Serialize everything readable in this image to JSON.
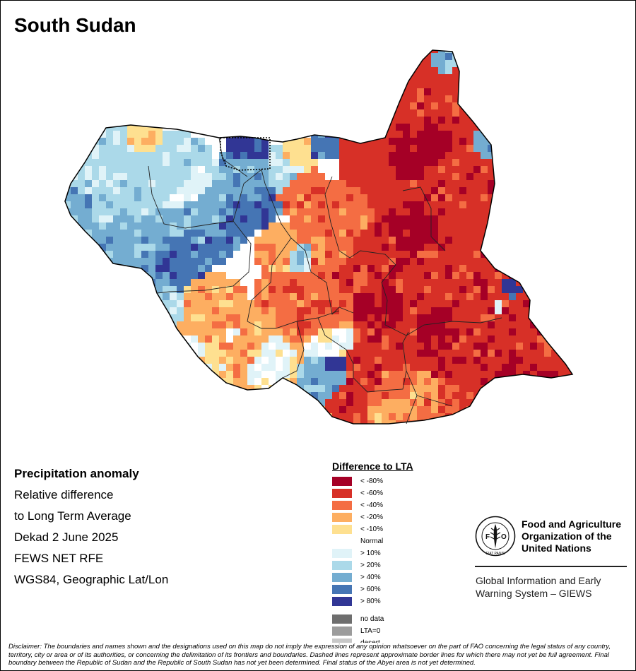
{
  "map": {
    "title": "South Sudan"
  },
  "info": {
    "heading": "Precipitation anomaly",
    "lines": [
      "Relative difference",
      "to Long Term Average",
      "Dekad 2 June 2025",
      "FEWS NET RFE",
      "WGS84, Geographic Lat/Lon"
    ]
  },
  "legend": {
    "title": "Difference to LTA",
    "classes": [
      {
        "label": "< -80%",
        "color": "#a50026"
      },
      {
        "label": "< -60%",
        "color": "#d73027"
      },
      {
        "label": "< -40%",
        "color": "#f46d43"
      },
      {
        "label": "< -20%",
        "color": "#fdae61"
      },
      {
        "label": "< -10%",
        "color": "#fee090"
      },
      {
        "label": "Normal",
        "color": "#ffffff"
      },
      {
        "label": "> 10%",
        "color": "#e0f3f8"
      },
      {
        "label": "> 20%",
        "color": "#abd9e9"
      },
      {
        "label": "> 40%",
        "color": "#74add1"
      },
      {
        "label": "> 60%",
        "color": "#4575b4"
      },
      {
        "label": "> 80%",
        "color": "#313695"
      }
    ],
    "special": [
      {
        "label": "no data",
        "color": "#6e6e6e"
      },
      {
        "label": "LTA=0",
        "color": "#9c9c9c"
      },
      {
        "label": "desert",
        "color": "#c8c8c8"
      }
    ]
  },
  "organization": {
    "name_lines": [
      "Food and Agriculture",
      "Organization of the",
      "United Nations"
    ],
    "logo_text": "FAO",
    "logo_ring_text": "FIAT PANIS",
    "system_lines": [
      "Global Information and Early",
      "Warning System – GIEWS"
    ]
  },
  "disclaimer": "Disclaimer: The boundaries and names shown and the designations used on this map do not imply the expression of any opinion whatsoever on the part of FAO concerning the legal status of any country, territory, city or area or of its authorities, or concerning the delimitation of its frontiers and boundaries. Dashed lines represent approximate border lines for which there may not yet be full agreement. Final boundary between the Republic of Sudan and the Republic of South Sudan has not yet been determined. Final status of the Abyei area is not yet determined."
}
